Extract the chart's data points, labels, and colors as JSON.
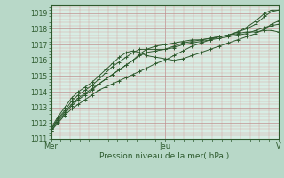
{
  "title": "",
  "xlabel": "Pression niveau de la mer( hPa )",
  "bg_color": "#b8d8c8",
  "plot_bg_color": "#d8ede4",
  "line_color": "#2d5a2d",
  "ylim": [
    1011,
    1019.5
  ],
  "yticks": [
    1011,
    1012,
    1013,
    1014,
    1015,
    1016,
    1017,
    1018,
    1019
  ],
  "xtick_labels": [
    "Mer",
    "Jeu",
    "V"
  ],
  "xtick_positions": [
    0.0,
    0.5,
    1.0
  ],
  "lines": [
    {
      "x": [
        0.0,
        0.03,
        0.06,
        0.09,
        0.12,
        0.15,
        0.18,
        0.21,
        0.24,
        0.27,
        0.3,
        0.33,
        0.36,
        0.39,
        0.42,
        0.46,
        0.5,
        0.54,
        0.58,
        0.62,
        0.66,
        0.7,
        0.74,
        0.78,
        0.82,
        0.86,
        0.9,
        0.94,
        0.97,
        1.0
      ],
      "y": [
        1011.5,
        1012.0,
        1012.5,
        1012.9,
        1013.2,
        1013.5,
        1013.8,
        1014.1,
        1014.3,
        1014.5,
        1014.7,
        1014.9,
        1015.1,
        1015.3,
        1015.5,
        1015.8,
        1016.0,
        1016.3,
        1016.6,
        1016.9,
        1017.1,
        1017.3,
        1017.5,
        1017.6,
        1017.8,
        1018.0,
        1018.3,
        1018.8,
        1019.1,
        1019.2
      ]
    },
    {
      "x": [
        0.0,
        0.03,
        0.06,
        0.09,
        0.12,
        0.15,
        0.18,
        0.21,
        0.24,
        0.27,
        0.3,
        0.33,
        0.36,
        0.39,
        0.42,
        0.46,
        0.5,
        0.54,
        0.58,
        0.62,
        0.66,
        0.7,
        0.74,
        0.78,
        0.82,
        0.86,
        0.9,
        0.94,
        0.97,
        1.0
      ],
      "y": [
        1011.5,
        1012.1,
        1012.6,
        1013.1,
        1013.5,
        1013.8,
        1014.1,
        1014.5,
        1014.8,
        1015.1,
        1015.4,
        1015.7,
        1016.0,
        1016.3,
        1016.5,
        1016.6,
        1016.7,
        1016.9,
        1017.1,
        1017.2,
        1017.3,
        1017.4,
        1017.5,
        1017.6,
        1017.8,
        1018.1,
        1018.5,
        1019.0,
        1019.2,
        1019.2
      ]
    },
    {
      "x": [
        0.0,
        0.03,
        0.06,
        0.09,
        0.12,
        0.15,
        0.18,
        0.21,
        0.24,
        0.27,
        0.3,
        0.33,
        0.36,
        0.39,
        0.42,
        0.46,
        0.5,
        0.54,
        0.58,
        0.62,
        0.66,
        0.7,
        0.74,
        0.78,
        0.82,
        0.86,
        0.9,
        0.94,
        0.97,
        1.0
      ],
      "y": [
        1011.6,
        1012.2,
        1012.7,
        1013.2,
        1013.6,
        1013.9,
        1014.2,
        1014.5,
        1014.8,
        1015.1,
        1015.4,
        1015.7,
        1016.0,
        1016.4,
        1016.7,
        1016.9,
        1017.0,
        1017.1,
        1017.2,
        1017.3,
        1017.3,
        1017.4,
        1017.5,
        1017.6,
        1017.7,
        1017.8,
        1017.8,
        1017.9,
        1017.9,
        1017.8
      ]
    },
    {
      "x": [
        0.0,
        0.03,
        0.06,
        0.09,
        0.12,
        0.15,
        0.18,
        0.21,
        0.24,
        0.27,
        0.3,
        0.33,
        0.36,
        0.39,
        0.42,
        0.46,
        0.5,
        0.54,
        0.58,
        0.62,
        0.66,
        0.7,
        0.74,
        0.78,
        0.82,
        0.86,
        0.9,
        0.94,
        0.97,
        1.0
      ],
      "y": [
        1011.6,
        1012.3,
        1012.8,
        1013.4,
        1013.8,
        1014.1,
        1014.4,
        1014.8,
        1015.2,
        1015.6,
        1015.9,
        1016.2,
        1016.5,
        1016.7,
        1016.7,
        1016.7,
        1016.7,
        1016.8,
        1017.0,
        1017.1,
        1017.2,
        1017.3,
        1017.4,
        1017.5,
        1017.6,
        1017.7,
        1017.9,
        1018.1,
        1018.2,
        1018.3
      ]
    },
    {
      "x": [
        0.0,
        0.03,
        0.06,
        0.09,
        0.12,
        0.15,
        0.18,
        0.21,
        0.24,
        0.27,
        0.3,
        0.33,
        0.36,
        0.39,
        0.42,
        0.46,
        0.5,
        0.54,
        0.58,
        0.62,
        0.66,
        0.7,
        0.74,
        0.78,
        0.82,
        0.86,
        0.9,
        0.94,
        0.97,
        1.0
      ],
      "y": [
        1011.7,
        1012.4,
        1013.0,
        1013.6,
        1014.0,
        1014.3,
        1014.6,
        1015.0,
        1015.4,
        1015.8,
        1016.2,
        1016.5,
        1016.6,
        1016.5,
        1016.3,
        1016.2,
        1016.1,
        1016.0,
        1016.1,
        1016.3,
        1016.5,
        1016.7,
        1016.9,
        1017.1,
        1017.3,
        1017.5,
        1017.7,
        1018.0,
        1018.3,
        1018.5
      ]
    }
  ]
}
